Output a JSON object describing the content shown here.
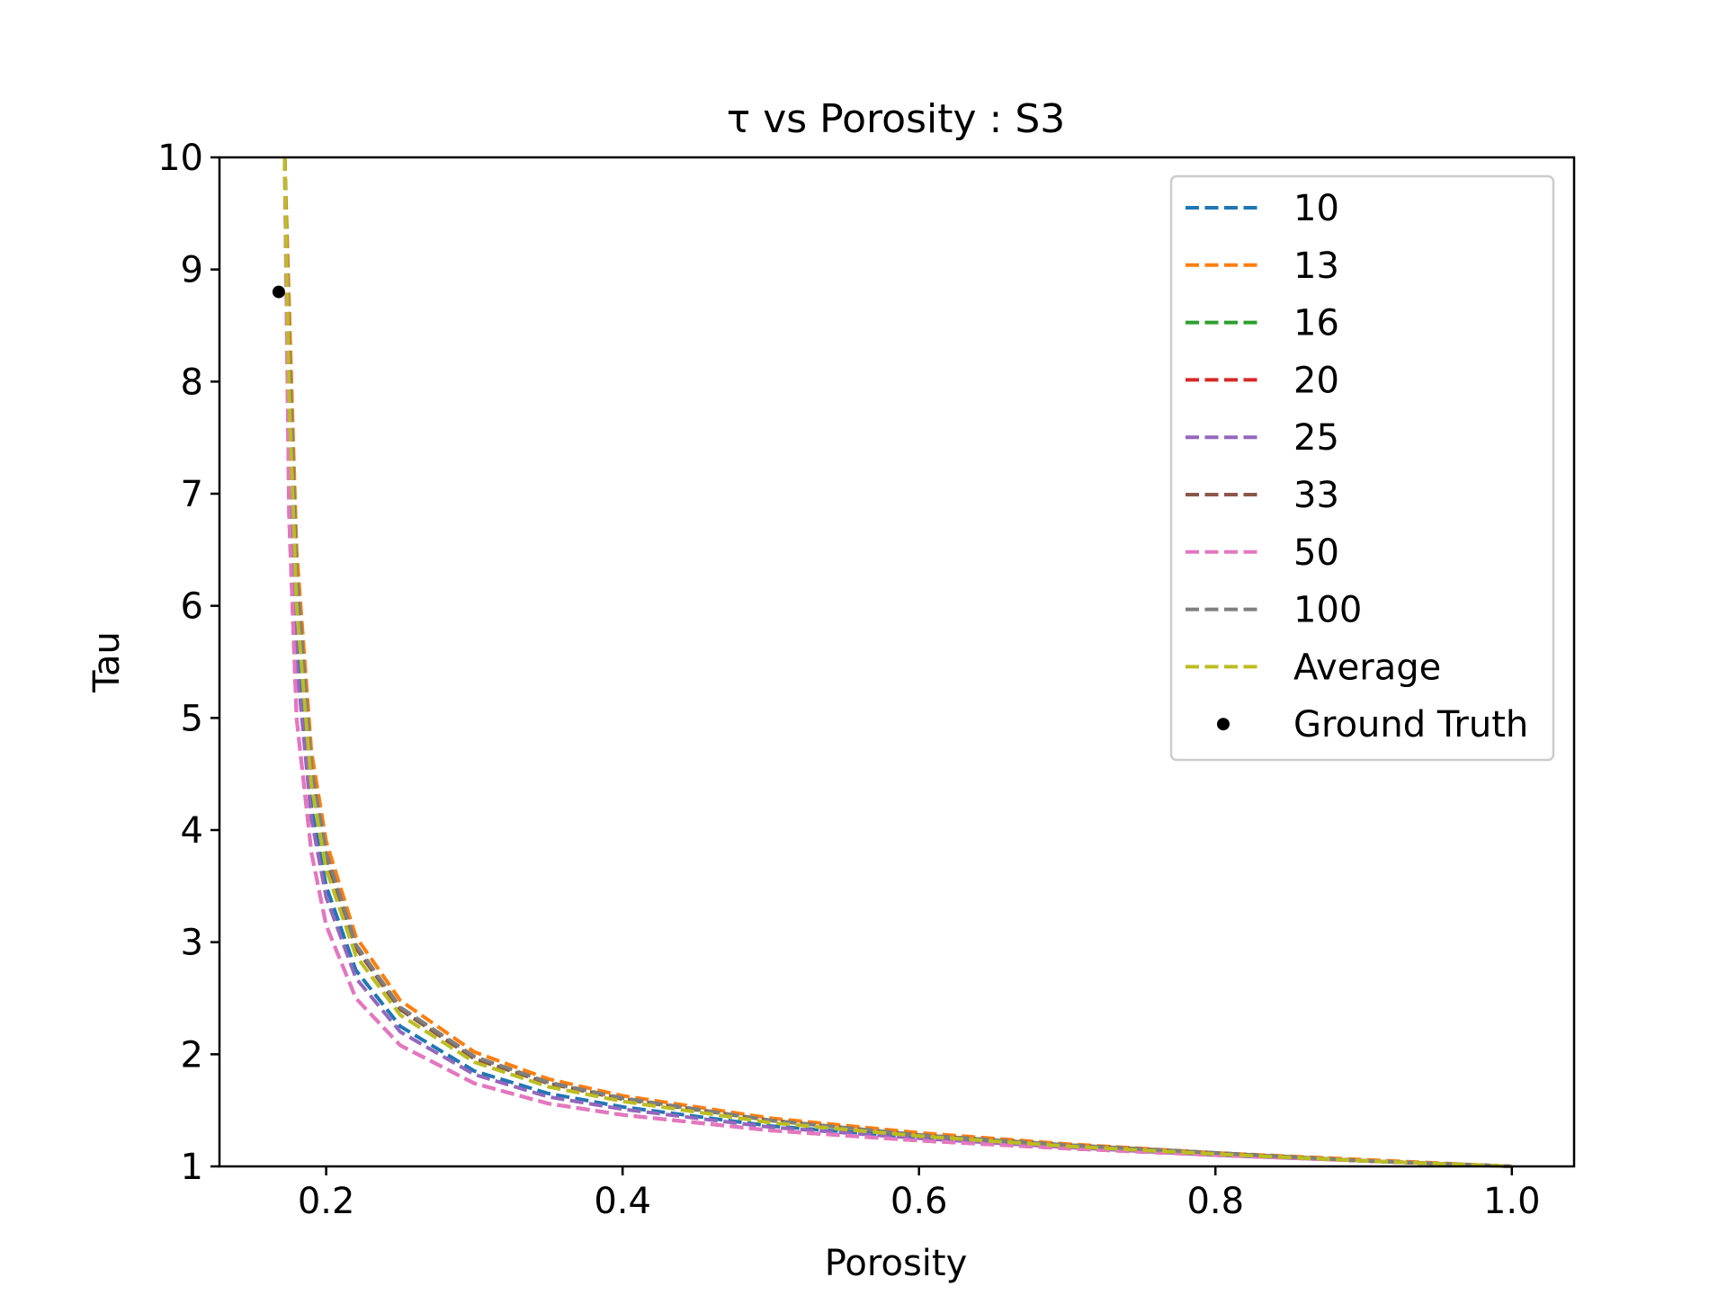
{
  "chart_data": {
    "type": "line",
    "title": "τ vs Porosity : S3",
    "xlabel": "Porosity",
    "ylabel": "Tau",
    "xlim": [
      0.128,
      1.042
    ],
    "ylim": [
      1,
      10
    ],
    "x_ticks": [
      0.2,
      0.4,
      0.6,
      0.8,
      1.0
    ],
    "x_tick_labels": [
      "0.2",
      "0.4",
      "0.6",
      "0.8",
      "1.0"
    ],
    "y_ticks": [
      1,
      2,
      3,
      4,
      5,
      6,
      7,
      8,
      9,
      10
    ],
    "y_tick_labels": [
      "1",
      "2",
      "3",
      "4",
      "5",
      "6",
      "7",
      "8",
      "9",
      "10"
    ],
    "grid": false,
    "legend_position": "top-right",
    "x_sample": [
      0.172,
      0.175,
      0.18,
      0.19,
      0.2,
      0.22,
      0.25,
      0.3,
      0.35,
      0.4,
      0.5,
      0.6,
      0.7,
      0.8,
      0.9,
      1.0
    ],
    "series": [
      {
        "name": "10",
        "color": "#1f77b4",
        "style": "dashed",
        "values": [
          10.0,
          7.4,
          5.7,
          4.2,
          3.5,
          2.75,
          2.25,
          1.85,
          1.65,
          1.53,
          1.36,
          1.26,
          1.18,
          1.11,
          1.05,
          1.0
        ]
      },
      {
        "name": "13",
        "color": "#ff7f0e",
        "style": "dashed",
        "values": [
          10.0,
          8.7,
          6.5,
          4.7,
          3.9,
          3.05,
          2.48,
          2.02,
          1.78,
          1.63,
          1.43,
          1.3,
          1.2,
          1.12,
          1.06,
          1.0
        ]
      },
      {
        "name": "16",
        "color": "#2ca02c",
        "style": "dashed",
        "values": [
          10.0,
          8.2,
          6.2,
          4.5,
          3.75,
          2.95,
          2.4,
          1.96,
          1.74,
          1.6,
          1.41,
          1.28,
          1.19,
          1.12,
          1.05,
          1.0
        ]
      },
      {
        "name": "20",
        "color": "#d62728",
        "style": "dashed",
        "values": [
          10.0,
          6.8,
          5.0,
          3.8,
          3.15,
          2.5,
          2.08,
          1.74,
          1.56,
          1.46,
          1.32,
          1.23,
          1.16,
          1.1,
          1.05,
          1.0
        ]
      },
      {
        "name": "25",
        "color": "#9467bd",
        "style": "dashed",
        "values": [
          10.0,
          7.2,
          5.5,
          4.1,
          3.4,
          2.68,
          2.2,
          1.82,
          1.62,
          1.51,
          1.35,
          1.25,
          1.17,
          1.1,
          1.05,
          1.0
        ]
      },
      {
        "name": "33",
        "color": "#8c564b",
        "style": "dashed",
        "values": [
          10.0,
          8.2,
          6.2,
          4.5,
          3.75,
          2.95,
          2.4,
          1.96,
          1.74,
          1.6,
          1.41,
          1.28,
          1.19,
          1.12,
          1.05,
          1.0
        ]
      },
      {
        "name": "50",
        "color": "#e377c2",
        "style": "dashed",
        "values": [
          10.0,
          6.8,
          5.0,
          3.8,
          3.15,
          2.5,
          2.08,
          1.74,
          1.56,
          1.46,
          1.32,
          1.23,
          1.16,
          1.1,
          1.05,
          1.0
        ]
      },
      {
        "name": "100",
        "color": "#7f7f7f",
        "style": "dashed",
        "values": [
          10.0,
          8.3,
          6.3,
          4.55,
          3.8,
          2.98,
          2.42,
          1.98,
          1.75,
          1.61,
          1.41,
          1.28,
          1.19,
          1.12,
          1.05,
          1.0
        ]
      },
      {
        "name": "Average",
        "color": "#bcbd22",
        "style": "dashed",
        "values": [
          10.0,
          7.9,
          6.0,
          4.4,
          3.65,
          2.88,
          2.35,
          1.93,
          1.71,
          1.58,
          1.39,
          1.27,
          1.18,
          1.11,
          1.05,
          1.0
        ]
      }
    ],
    "points": [
      {
        "name": "Ground Truth",
        "color": "#000000",
        "x": 0.168,
        "y": 8.8
      }
    ]
  }
}
